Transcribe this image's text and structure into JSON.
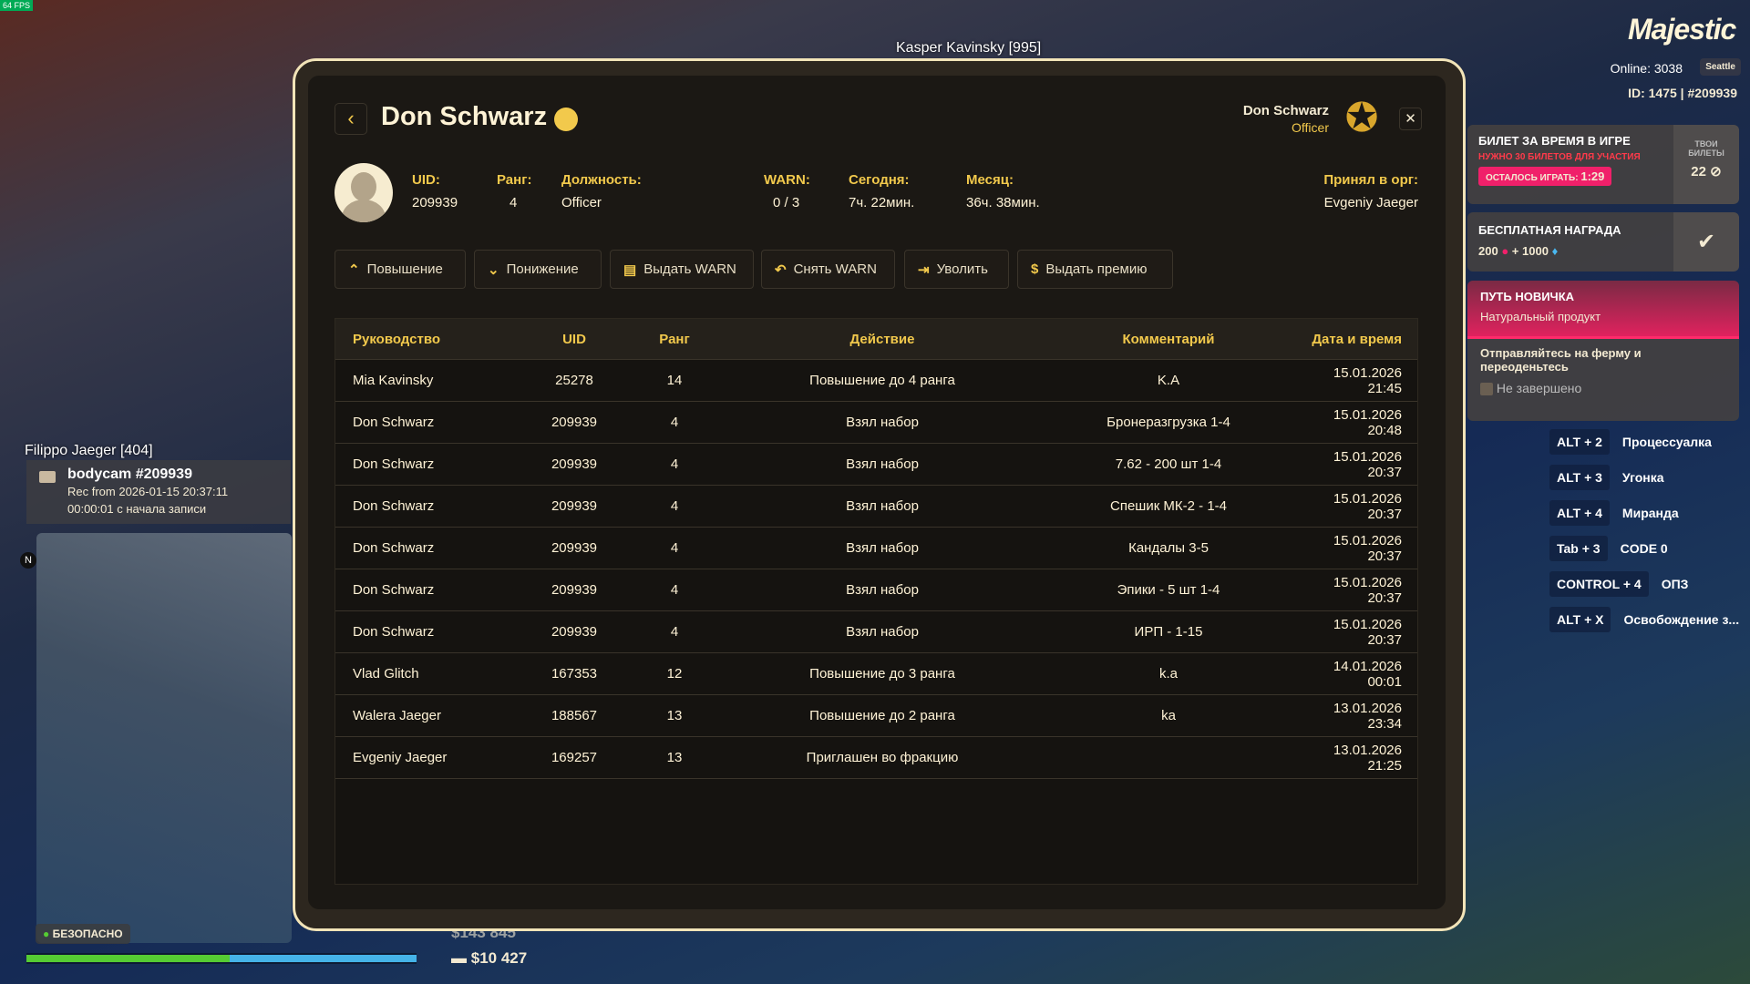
{
  "hud": {
    "fps": "64 FPS",
    "overhead_name": "Kasper Kavinsky [995]",
    "nearby_name": "Filippo Jaeger [404]",
    "bodycam": {
      "title": "bodycam #209939",
      "rec": "Rec from 2026-01-15 20:37:11",
      "elapsed": "00:00:01 с начала записи"
    },
    "compass": "N",
    "zone_status": "БЕЗОПАСНО",
    "cash": "$143 845",
    "bank": "$10 427",
    "health_pct": 52,
    "armor_pct": 48
  },
  "server": {
    "logo": "Majestic",
    "online": "Online: 3038",
    "city": "Seattle",
    "id": "ID: 1475 | #209939"
  },
  "cards": {
    "ticket_title": "БИЛЕТ ЗА ВРЕМЯ В ИГРЕ",
    "ticket_sub": "НУЖНО 30 БИЛЕТОВ ДЛЯ УЧАСТИЯ",
    "ticket_timer_label": "ОСТАЛОСЬ ИГРАТЬ:",
    "ticket_timer": "1:29",
    "your_tickets": "ТВОИ БИЛЕТЫ",
    "tickets_count": "22",
    "reward_title": "БЕСПЛАТНАЯ НАГРАДА",
    "reward_a": "200",
    "reward_b": "1000",
    "quest_title": "ПУТЬ НОВИЧКА",
    "quest_sub": "Натуральный продукт",
    "quest_task": "Отправляйтесь на ферму и переоденьтесь",
    "quest_status": "Не завершено"
  },
  "hotkeys": [
    {
      "k": "ALT + 2",
      "v": "Процессуалка"
    },
    {
      "k": "ALT + 3",
      "v": "Угонка"
    },
    {
      "k": "ALT + 4",
      "v": "Миранда"
    },
    {
      "k": "Tab + 3",
      "v": "CODE 0"
    },
    {
      "k": "CONTROL + 4",
      "v": "ОПЗ"
    },
    {
      "k": "ALT + X",
      "v": "Освобождение з..."
    }
  ],
  "modal": {
    "title": "Don Schwarz",
    "viewer_name": "Don Schwarz",
    "viewer_role": "Officer",
    "info": {
      "uid_label": "UID:",
      "uid": "209939",
      "rank_label": "Ранг:",
      "rank": "4",
      "position_label": "Должность:",
      "position": "Officer",
      "warn_label": "WARN:",
      "warn": "0 / 3",
      "today_label": "Сегодня:",
      "today": "7ч. 22мин.",
      "month_label": "Месяц:",
      "month": "36ч. 38мин.",
      "hired_by_label": "Принял в орг:",
      "hired_by": "Evgeniy Jaeger"
    },
    "actions": [
      "Повышение",
      "Понижение",
      "Выдать WARN",
      "Снять WARN",
      "Уволить",
      "Выдать премию"
    ],
    "columns": [
      "Руководство",
      "UID",
      "Ранг",
      "Действие",
      "Комментарий",
      "Дата и время"
    ],
    "rows": [
      [
        "Mia Kavinsky",
        "25278",
        "14",
        "Повышение до 4 ранга",
        "K.A",
        "15.01.2026 21:45"
      ],
      [
        "Don Schwarz",
        "209939",
        "4",
        "Взял набор",
        "Бронеразгрузка 1-4",
        "15.01.2026 20:48"
      ],
      [
        "Don Schwarz",
        "209939",
        "4",
        "Взял набор",
        "7.62 - 200 шт 1-4",
        "15.01.2026 20:37"
      ],
      [
        "Don Schwarz",
        "209939",
        "4",
        "Взял набор",
        "Спешик МК-2 - 1-4",
        "15.01.2026 20:37"
      ],
      [
        "Don Schwarz",
        "209939",
        "4",
        "Взял набор",
        "Кандалы 3-5",
        "15.01.2026 20:37"
      ],
      [
        "Don Schwarz",
        "209939",
        "4",
        "Взял набор",
        "Эпики - 5 шт 1-4",
        "15.01.2026 20:37"
      ],
      [
        "Don Schwarz",
        "209939",
        "4",
        "Взял набор",
        "ИРП - 1-15",
        "15.01.2026 20:37"
      ],
      [
        "Vlad Glitch",
        "167353",
        "12",
        "Повышение до 3 ранга",
        "k.a",
        "14.01.2026 00:01"
      ],
      [
        "Walera Jaeger",
        "188567",
        "13",
        "Повышение до 2 ранга",
        "ka",
        "13.01.2026 23:34"
      ],
      [
        "Evgeniy Jaeger",
        "169257",
        "13",
        "Приглашен во фракцию",
        "",
        "13.01.2026 21:25"
      ]
    ]
  },
  "colors": {
    "accent": "#f2c94c",
    "pink": "#f0206a",
    "panel": "#1b1814"
  }
}
